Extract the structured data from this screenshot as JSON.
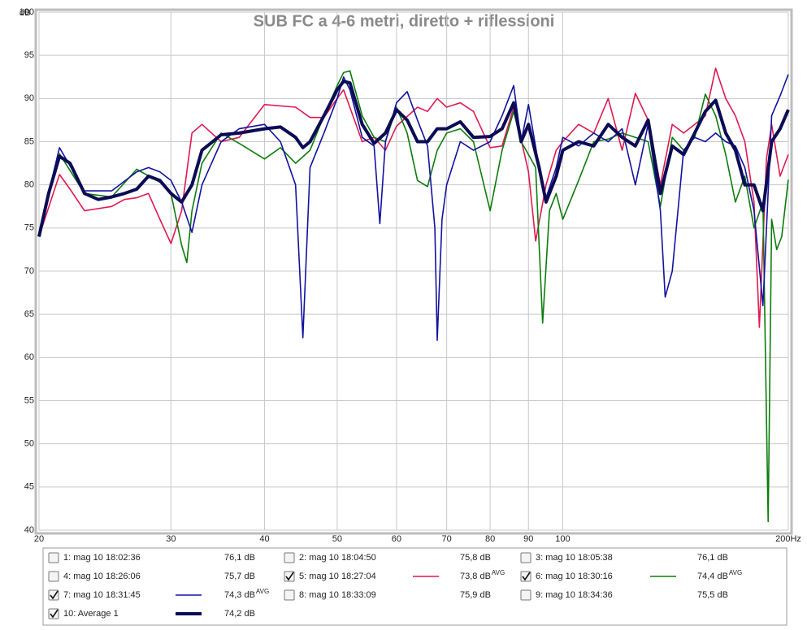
{
  "chart_data": {
    "type": "line",
    "title": "SUB FC a 4-6 metri, diretto + riflessioni",
    "y_label": "dB",
    "xscale": "log",
    "grid": true,
    "xlim": [
      20,
      200
    ],
    "ylim": [
      40,
      100
    ],
    "xticks": [
      20,
      30,
      40,
      50,
      60,
      70,
      80,
      90,
      100,
      {
        "value": 200,
        "label": "200Hz"
      }
    ],
    "yticks": [
      40,
      45,
      50,
      55,
      60,
      65,
      70,
      75,
      80,
      85,
      90,
      95,
      100
    ],
    "series": [
      {
        "name": "1: mag 10 18:02:36",
        "color": "#1c2a6e",
        "level": "76,1 dB",
        "checked": false
      },
      {
        "name": "2: mag 10 18:04:50",
        "color": "#c2185b",
        "level": "75,8 dB",
        "checked": false
      },
      {
        "name": "3: mag 10 18:05:38",
        "color": "#b71c1c",
        "level": "76,1 dB",
        "checked": false
      },
      {
        "name": "4: mag 10 18:26:06",
        "color": "#1a3a8a",
        "level": "75,7 dB",
        "checked": false
      },
      {
        "name": "5: mag 10 18:27:04",
        "color": "#e0194f",
        "level": "73,8 dB",
        "level_note": "AVG",
        "checked": true,
        "line_width": 1.6,
        "x": [
          20,
          21.3,
          22,
          23,
          25,
          26,
          27,
          28,
          29,
          30,
          31,
          32,
          33,
          35,
          37,
          40,
          44,
          46,
          48,
          50,
          51,
          54,
          56,
          58,
          60,
          64,
          66,
          68,
          70,
          73,
          76,
          80,
          83,
          86,
          90,
          92,
          95,
          98,
          100,
          105,
          110,
          115,
          120,
          125,
          130,
          135,
          140,
          145,
          150,
          155,
          160,
          165,
          170,
          175,
          180,
          183,
          187,
          190,
          195,
          200
        ],
        "values": [
          74,
          81.2,
          79.5,
          77,
          77.5,
          78.3,
          78.5,
          79,
          76,
          73.2,
          77,
          86,
          87,
          85,
          85.5,
          89.3,
          89,
          87.8,
          87.8,
          90,
          91,
          85,
          85.5,
          84,
          86.8,
          89,
          88.5,
          90,
          89,
          89.5,
          88.5,
          84.3,
          84.5,
          89,
          81.5,
          73.5,
          80,
          84,
          85,
          87,
          86,
          90,
          84,
          90.6,
          87.5,
          80,
          87,
          86,
          87,
          88,
          93.5,
          90,
          88,
          85,
          78,
          63.5,
          83,
          87,
          81,
          83.5
        ]
      },
      {
        "name": "6: mag 10 18:30:16",
        "color": "#0c7c0c",
        "level": "74,4 dB",
        "level_note": "AVG",
        "checked": true,
        "line_width": 1.6,
        "x": [
          20,
          21.3,
          23,
          25,
          27,
          29,
          30,
          31,
          31.5,
          32,
          33,
          35,
          37,
          40,
          42,
          44,
          46,
          48,
          50,
          51,
          52,
          54,
          56,
          58,
          60,
          62,
          64,
          66,
          68,
          70,
          73,
          76,
          80,
          83,
          86,
          88,
          90,
          92,
          94,
          96,
          98,
          100,
          105,
          110,
          115,
          120,
          125,
          130,
          135,
          140,
          145,
          150,
          155,
          160,
          165,
          170,
          175,
          180,
          185,
          188,
          190,
          193,
          196,
          200
        ],
        "values": [
          74,
          83.6,
          79,
          78.6,
          81.8,
          80.3,
          79,
          73,
          71,
          77,
          82.5,
          86,
          84.8,
          83,
          84.3,
          82.5,
          84,
          88,
          91.5,
          93,
          93.2,
          88,
          85.5,
          85,
          89,
          86,
          80.5,
          79.8,
          84,
          86,
          86.5,
          85,
          77,
          84,
          88.5,
          85,
          83.5,
          82,
          64,
          77,
          79,
          76,
          80.5,
          85,
          85.3,
          86,
          85.5,
          85,
          77.5,
          85.5,
          84,
          85.5,
          90.5,
          88,
          83.5,
          78,
          81,
          75,
          78,
          41,
          76,
          72.5,
          74,
          80.6
        ]
      },
      {
        "name": "7: mag 10 18:31:45",
        "color": "#1212a0",
        "level": "74,3 dB",
        "level_note": "AVG",
        "checked": true,
        "line_width": 1.6,
        "x": [
          20,
          21.3,
          23,
          25,
          27,
          28,
          29,
          30,
          31,
          32,
          33,
          35,
          37,
          40,
          42,
          44,
          45,
          46,
          48,
          50,
          51,
          52,
          54,
          56,
          57,
          58,
          60,
          62,
          64,
          66,
          67.5,
          68,
          69,
          70,
          73,
          76,
          80,
          83,
          86,
          88,
          90,
          93,
          95,
          98,
          100,
          105,
          110,
          115,
          120,
          125,
          130,
          135,
          137,
          140,
          145,
          150,
          155,
          160,
          165,
          170,
          175,
          180,
          185,
          190,
          195,
          200
        ],
        "values": [
          74.5,
          84.3,
          79.3,
          79.3,
          81.5,
          82,
          81.5,
          80.5,
          78,
          74.5,
          80,
          85,
          86.5,
          87,
          85,
          80,
          62.3,
          82,
          86,
          90,
          92.5,
          91,
          85.5,
          84.5,
          75.5,
          85,
          89.5,
          90.8,
          87.5,
          84.5,
          75,
          62,
          76,
          80,
          85,
          84,
          85,
          88,
          91.5,
          85,
          89.3,
          82,
          78.5,
          82,
          85.5,
          84.5,
          86,
          85,
          86.5,
          80,
          87,
          77,
          67,
          70,
          84,
          85.5,
          85,
          86,
          85,
          84.5,
          82,
          77,
          66,
          88,
          90.3,
          92.8
        ]
      },
      {
        "name": "8: mag 10 18:33:09",
        "color": "#16996a",
        "level": "75,9 dB",
        "checked": false
      },
      {
        "name": "9: mag 10 18:34:36",
        "color": "#b01a1a",
        "level": "75,5 dB",
        "checked": false
      },
      {
        "name": "10: Average 1",
        "color": "#0b0b55",
        "level": "74,2 dB",
        "checked": true,
        "line_width": 4,
        "x": [
          20,
          20.6,
          21.3,
          22,
          23,
          24,
          25,
          26,
          27,
          28,
          29,
          30,
          31,
          32,
          33,
          35,
          37,
          40,
          42,
          44,
          45,
          46,
          48,
          50,
          51,
          52,
          54,
          56,
          58,
          60,
          62,
          64,
          66,
          68,
          70,
          73,
          76,
          80,
          83,
          86,
          88,
          90,
          93,
          95,
          98,
          100,
          105,
          110,
          115,
          120,
          125,
          130,
          135,
          140,
          145,
          150,
          155,
          160,
          165,
          170,
          175,
          180,
          185,
          190,
          195,
          200
        ],
        "values": [
          74,
          79,
          83.3,
          82.5,
          79,
          78.3,
          78.6,
          79,
          79.5,
          81,
          80.5,
          79,
          78,
          80,
          84,
          85.8,
          86,
          86.5,
          86.7,
          85.5,
          84.3,
          85,
          88,
          91,
          92,
          91.8,
          87,
          84.8,
          86,
          88.7,
          87.5,
          85,
          85,
          86.5,
          86.5,
          87.3,
          85.5,
          85.6,
          86.5,
          89.5,
          85,
          87,
          82,
          78,
          81,
          84,
          85,
          84.5,
          87,
          85.5,
          84.5,
          87.5,
          79,
          84.5,
          83.5,
          86,
          88.5,
          89.8,
          86,
          84,
          80,
          80,
          77,
          85,
          86.5,
          88.7
        ]
      }
    ]
  }
}
